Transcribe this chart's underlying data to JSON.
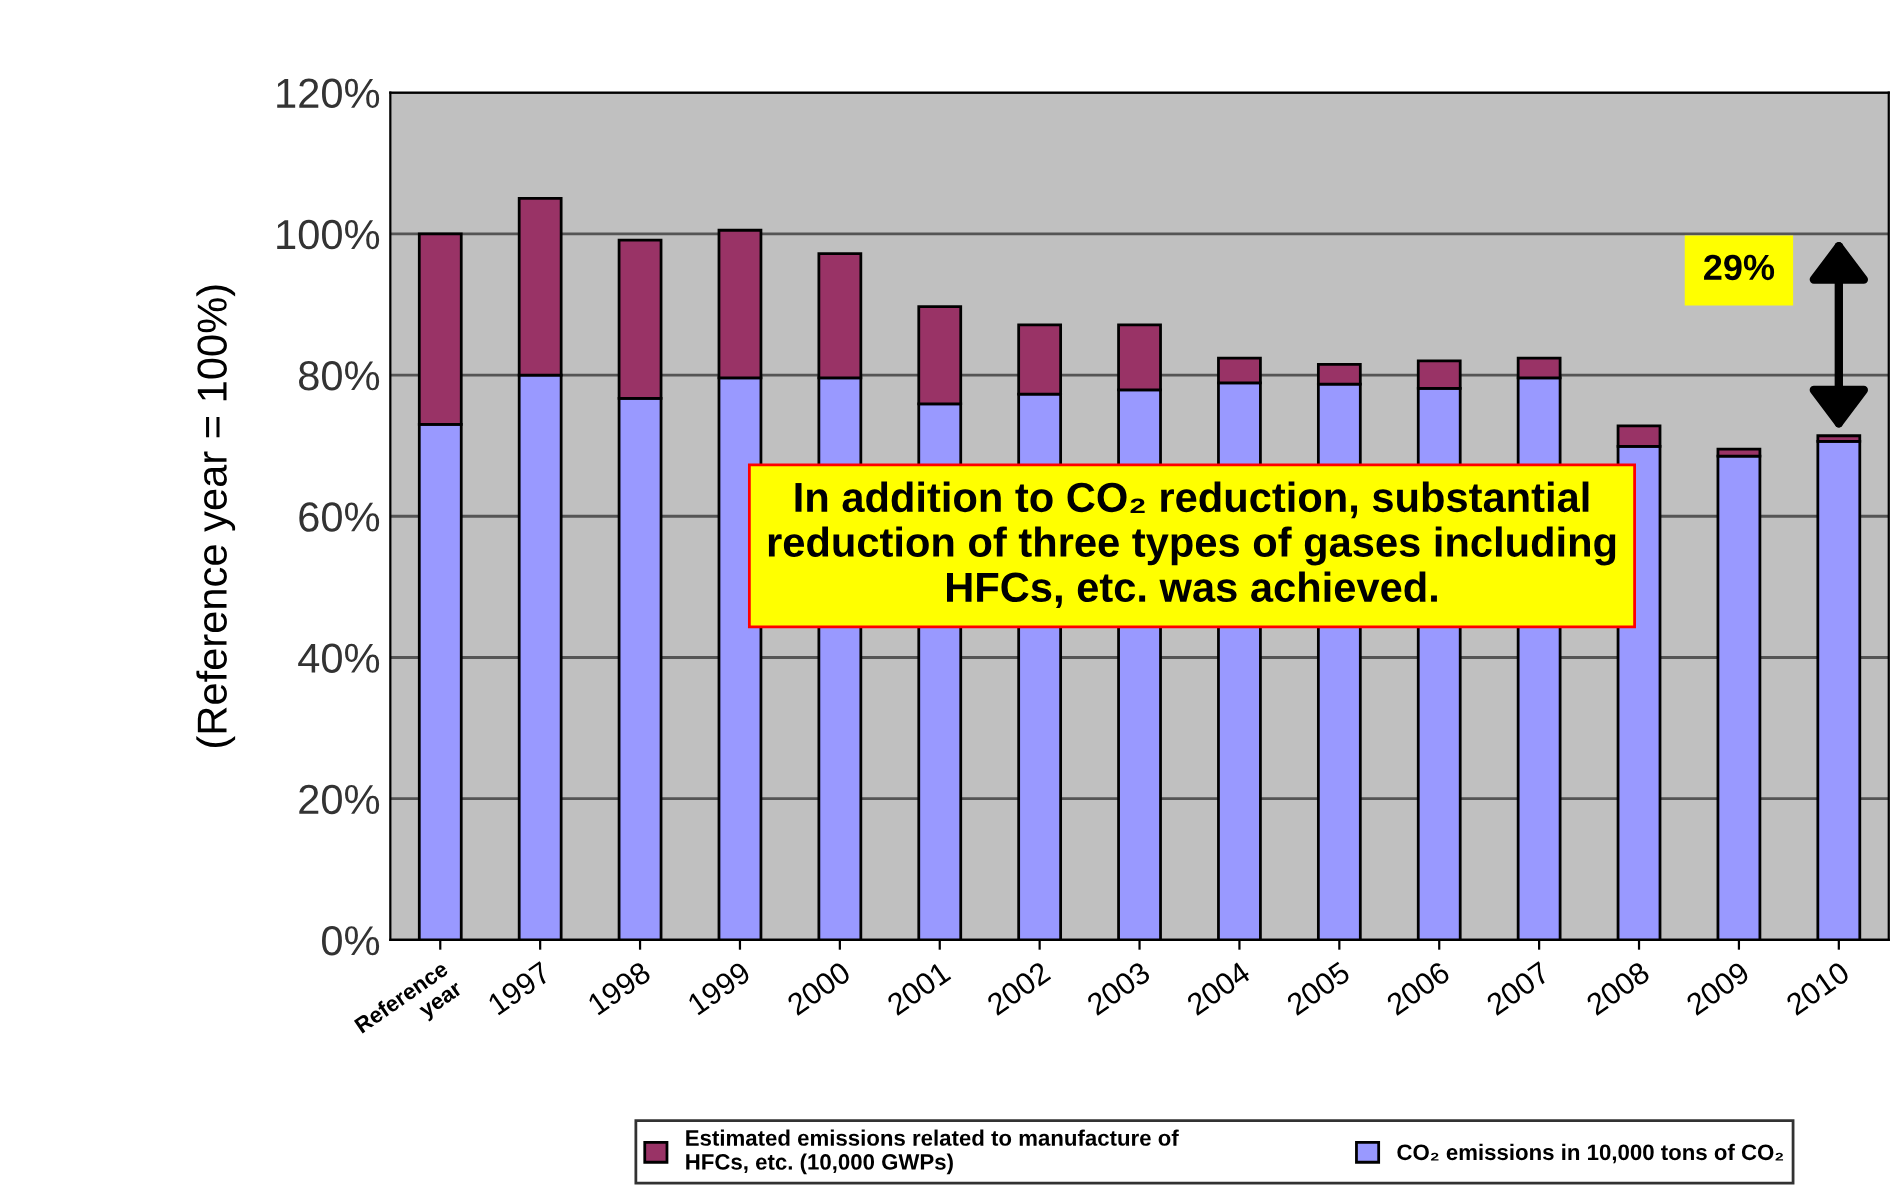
{
  "chart_data": {
    "type": "bar",
    "stacked": true,
    "ylabel": "(Reference year = 100%)",
    "categories": [
      "Reference\nyear",
      "1997",
      "1998",
      "1999",
      "2000",
      "2001",
      "2002",
      "2003",
      "2004",
      "2005",
      "2006",
      "2007",
      "2008",
      "2009",
      "2010"
    ],
    "series": [
      {
        "name": "CO₂ emissions in 10,000 tons of CO₂",
        "color": "#9999ff",
        "values": [
          73,
          80,
          76.7,
          79.6,
          79.6,
          75.9,
          77.3,
          77.9,
          78.9,
          78.7,
          78.1,
          79.6,
          69.9,
          68.5,
          70.6
        ]
      },
      {
        "name": "Estimated emissions related to manufacture of\nHFCs, etc. (10,000 GWPs)",
        "color": "#993366",
        "values": [
          27,
          25,
          22.4,
          20.9,
          17.6,
          13.8,
          9.8,
          9.2,
          3.5,
          2.8,
          3.9,
          2.8,
          2.9,
          1,
          0.8
        ]
      }
    ],
    "ylim": [
      0,
      120
    ],
    "yticks": [
      {
        "value": 0,
        "label": "0%"
      },
      {
        "value": 20,
        "label": "20%"
      },
      {
        "value": 40,
        "label": "40%"
      },
      {
        "value": 60,
        "label": "60%"
      },
      {
        "value": 80,
        "label": "80%"
      },
      {
        "value": 100,
        "label": "100%"
      },
      {
        "value": 120,
        "label": "120%"
      }
    ],
    "grid": "y",
    "legend": "bottom",
    "annotations": [
      "In addition to CO₂ reduction, substantial\nreduction of three types of gases including\nHFCs, etc. was achieved.",
      "29%"
    ]
  }
}
